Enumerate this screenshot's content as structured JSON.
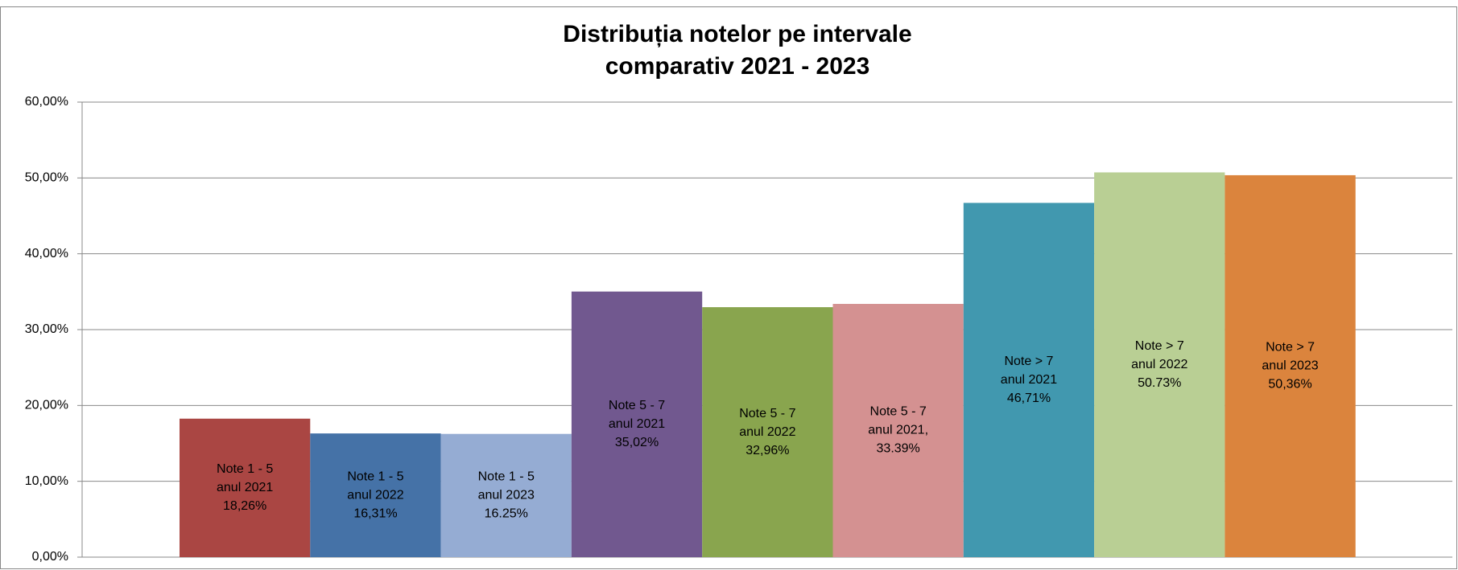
{
  "chart_data": {
    "type": "bar",
    "title": [
      "Distribuția notelor pe intervale",
      "comparativ 2021 - 2023"
    ],
    "values": [
      18.26,
      16.31,
      16.25,
      35.02,
      32.96,
      33.39,
      46.71,
      50.73,
      50.36
    ],
    "value_labels": [
      [
        "Note 1 - 5",
        "anul 2021",
        "18,26%"
      ],
      [
        "Note 1 - 5",
        "anul 2022",
        "16,31%"
      ],
      [
        "Note 1 - 5",
        "anul 2023",
        "16.25%"
      ],
      [
        "Note 5 - 7",
        "anul 2021",
        "35,02%"
      ],
      [
        "Note 5 - 7",
        "anul 2022",
        "32,96%"
      ],
      [
        "Note 5 - 7",
        "anul 2021,",
        "33.39%"
      ],
      [
        "Note > 7",
        "anul 2021",
        "46,71%"
      ],
      [
        "Note > 7",
        "anul 2022",
        "50.73%"
      ],
      [
        "Note > 7",
        "anul 2023",
        "50,36%"
      ]
    ],
    "colors": [
      "#aa4643",
      "#4572a7",
      "#95acd3",
      "#71588f",
      "#89a54e",
      "#d49191",
      "#4198af",
      "#b9cf94",
      "#db843d"
    ],
    "ylim": [
      0,
      60
    ],
    "yticks": [
      {
        "value": 0,
        "label": "0,00%"
      },
      {
        "value": 10,
        "label": "10,00%"
      },
      {
        "value": 20,
        "label": "20,00%"
      },
      {
        "value": 30,
        "label": "30,00%"
      },
      {
        "value": 40,
        "label": "40,00%"
      },
      {
        "value": 50,
        "label": "50,00%"
      },
      {
        "value": 60,
        "label": "60,00%"
      }
    ],
    "grid": true
  }
}
